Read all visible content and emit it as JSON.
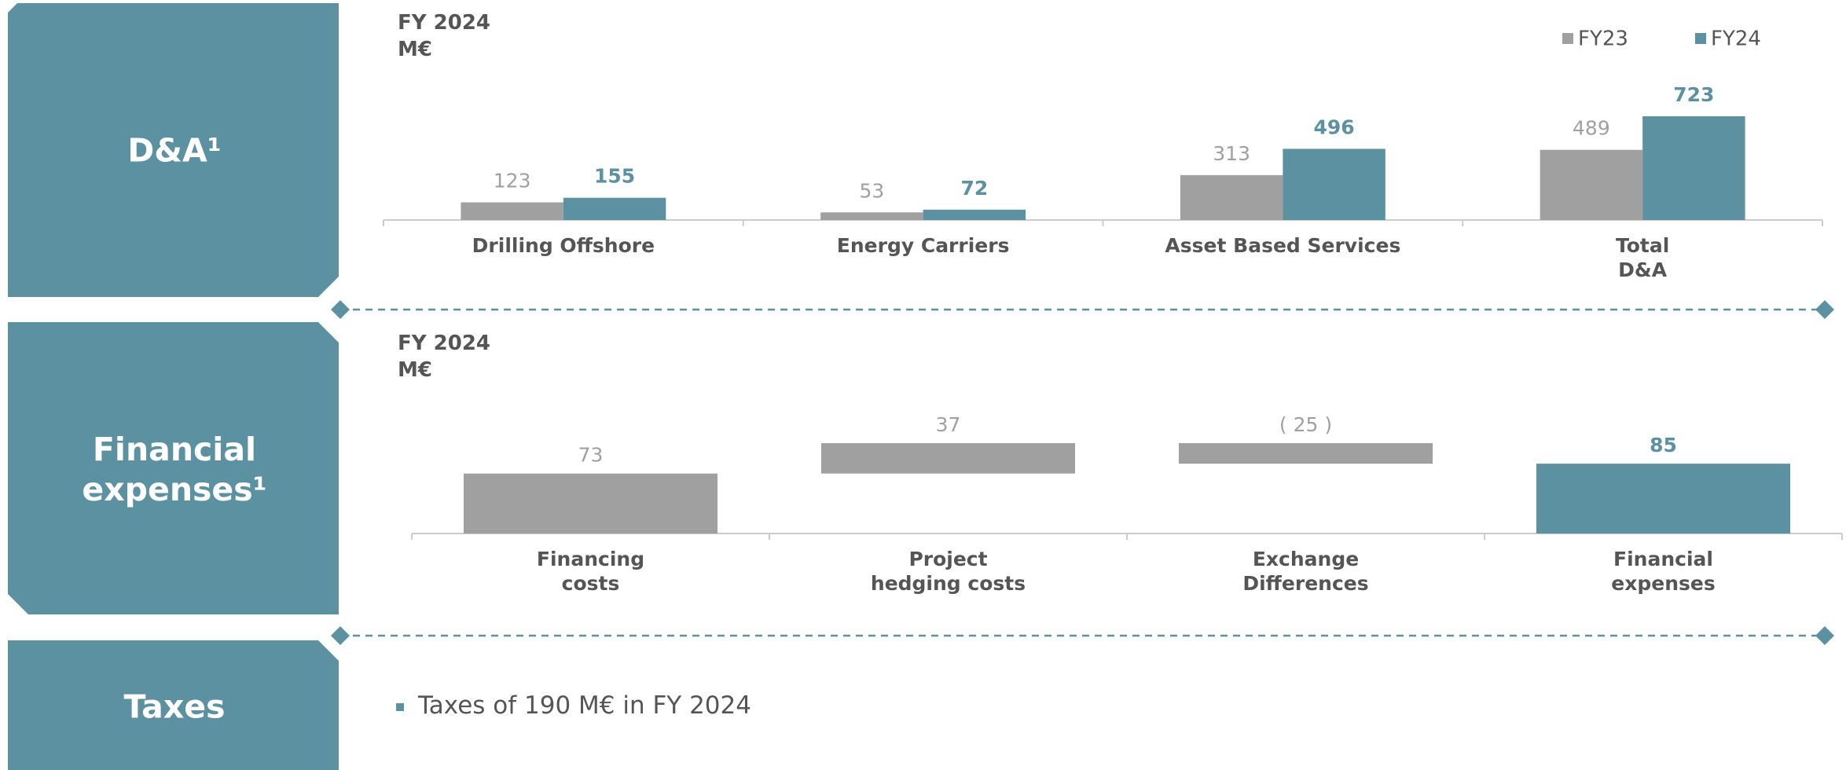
{
  "sections": [
    {
      "label": "D&A¹"
    },
    {
      "label": "Financial\nexpenses¹"
    },
    {
      "label": "Taxes"
    }
  ],
  "taxes": {
    "bullets": [
      "Taxes of 190 M€ in FY 2024"
    ]
  },
  "chart_data": [
    {
      "type": "bar",
      "title": "FY 2024",
      "subtitle": "M€",
      "categories": [
        "Drilling Offshore",
        "Energy Carriers",
        "Asset Based Services",
        "Total\nD&A"
      ],
      "series": [
        {
          "name": "FY23",
          "color": "#a0a0a0",
          "values": [
            123,
            53,
            313,
            489
          ]
        },
        {
          "name": "FY24",
          "color": "#5b91a1",
          "values": [
            155,
            72,
            496,
            723
          ]
        }
      ],
      "legend": "top-right"
    },
    {
      "type": "waterfall",
      "title": "FY 2024",
      "subtitle": "M€",
      "categories": [
        "Financing\ncosts",
        "Project\nhedging costs",
        "Exchange\nDifferences",
        "Financial\nexpenses"
      ],
      "values": [
        73,
        37,
        -25,
        85
      ],
      "value_labels": [
        "73",
        "37",
        "( 25 )",
        "85"
      ],
      "colors": [
        "#a0a0a0",
        "#a0a0a0",
        "#a0a0a0",
        "#5b91a1"
      ]
    }
  ]
}
